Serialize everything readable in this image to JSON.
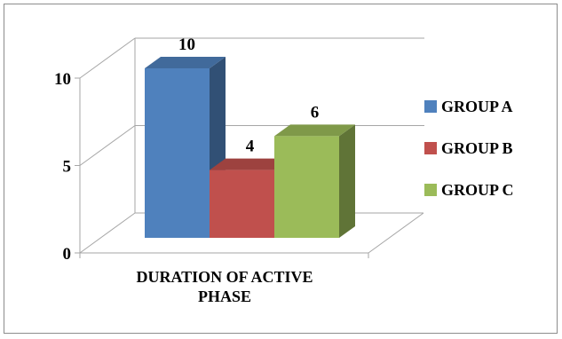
{
  "chart_data": {
    "type": "bar",
    "categories": [
      "DURATION OF ACTIVE PHASE"
    ],
    "category_lines": [
      "DURATION OF ACTIVE",
      "PHASE"
    ],
    "series": [
      {
        "name": "GROUP A",
        "values": [
          10
        ],
        "color": "#4f81bd"
      },
      {
        "name": "GROUP B",
        "values": [
          4
        ],
        "color": "#c0504d"
      },
      {
        "name": "GROUP C",
        "values": [
          6
        ],
        "color": "#9bbb59"
      }
    ],
    "data_labels": [
      "10",
      "4",
      "6"
    ],
    "y_ticks": [
      "0",
      "5",
      "10"
    ],
    "ylim": [
      0,
      10
    ],
    "grid": true,
    "legend_position": "right",
    "title": "",
    "xlabel": "",
    "ylabel": ""
  }
}
